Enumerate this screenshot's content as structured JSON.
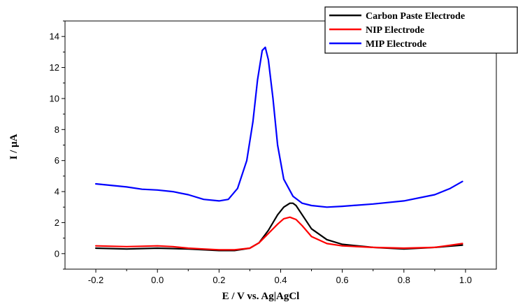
{
  "chart_data": {
    "type": "line",
    "title": "",
    "xlabel": "E / V vs. Ag|AgCl",
    "ylabel": "I / μA",
    "xlim": [
      -0.3,
      1.1
    ],
    "ylim": [
      -1.0,
      15.0
    ],
    "x_ticks": [
      -0.2,
      0.0,
      0.2,
      0.4,
      0.6,
      0.8,
      1.0
    ],
    "x_tick_labels": [
      "-0.2",
      "0.0",
      "0.2",
      "0.4",
      "0.6",
      "0.8",
      "1.0"
    ],
    "y_ticks": [
      0,
      2,
      4,
      6,
      8,
      10,
      12,
      14
    ],
    "y_tick_labels": [
      "0",
      "2",
      "4",
      "6",
      "8",
      "10",
      "12",
      "14"
    ],
    "grid": false,
    "legend_position": "top-right",
    "series": [
      {
        "name": "Carbon Paste Electrode",
        "color": "#000000",
        "x": [
          -0.2,
          -0.1,
          0.0,
          0.1,
          0.15,
          0.2,
          0.25,
          0.3,
          0.33,
          0.36,
          0.39,
          0.41,
          0.43,
          0.44,
          0.45,
          0.47,
          0.5,
          0.55,
          0.6,
          0.7,
          0.8,
          0.9,
          0.99
        ],
        "y": [
          0.35,
          0.3,
          0.35,
          0.3,
          0.25,
          0.2,
          0.2,
          0.35,
          0.7,
          1.5,
          2.5,
          3.0,
          3.25,
          3.25,
          3.1,
          2.5,
          1.6,
          0.9,
          0.6,
          0.4,
          0.3,
          0.4,
          0.55
        ]
      },
      {
        "name": "NIP  Electrode",
        "color": "#ff0000",
        "x": [
          -0.2,
          -0.1,
          0.0,
          0.05,
          0.1,
          0.15,
          0.2,
          0.25,
          0.3,
          0.33,
          0.36,
          0.39,
          0.41,
          0.43,
          0.45,
          0.47,
          0.5,
          0.55,
          0.6,
          0.7,
          0.8,
          0.9,
          0.99
        ],
        "y": [
          0.5,
          0.45,
          0.5,
          0.45,
          0.35,
          0.3,
          0.25,
          0.25,
          0.35,
          0.7,
          1.3,
          1.9,
          2.25,
          2.35,
          2.2,
          1.8,
          1.1,
          0.65,
          0.5,
          0.4,
          0.35,
          0.4,
          0.65
        ]
      },
      {
        "name": "MIP Electrode",
        "color": "#0000ff",
        "x": [
          -0.2,
          -0.1,
          -0.05,
          0.0,
          0.05,
          0.1,
          0.15,
          0.2,
          0.23,
          0.26,
          0.29,
          0.31,
          0.325,
          0.34,
          0.35,
          0.36,
          0.375,
          0.39,
          0.41,
          0.44,
          0.47,
          0.5,
          0.55,
          0.6,
          0.7,
          0.8,
          0.9,
          0.95,
          0.99
        ],
        "y": [
          4.5,
          4.3,
          4.15,
          4.1,
          4.0,
          3.8,
          3.5,
          3.4,
          3.5,
          4.2,
          6.0,
          8.5,
          11.2,
          13.1,
          13.3,
          12.5,
          10.0,
          7.0,
          4.8,
          3.7,
          3.25,
          3.1,
          3.0,
          3.05,
          3.2,
          3.4,
          3.8,
          4.2,
          4.65
        ]
      }
    ]
  }
}
